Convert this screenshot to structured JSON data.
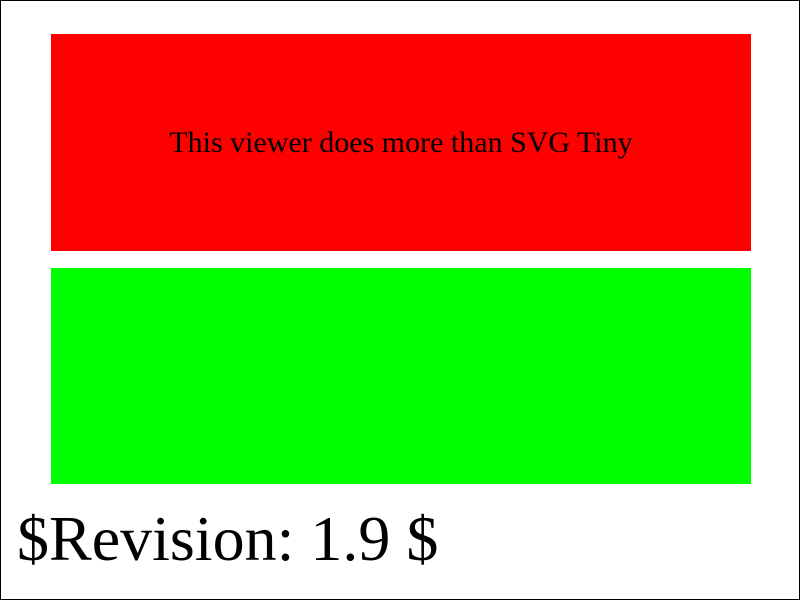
{
  "test_view": {
    "fail_message": "This viewer does more than SVG Tiny",
    "revision_label": "$Revision: 1.9 $"
  },
  "colors": {
    "fail_fill": "#ff0000",
    "pass_fill": "#00ff00",
    "border": "#000000",
    "background": "#ffffff"
  }
}
